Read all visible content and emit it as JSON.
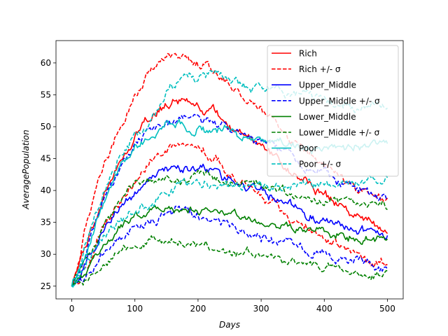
{
  "chart_data": {
    "type": "line",
    "xlabel": "Days",
    "ylabel": "AveragePopulation",
    "xlim": [
      -25,
      525
    ],
    "ylim": [
      23,
      63.5
    ],
    "xticks": [
      0,
      100,
      200,
      300,
      400,
      500
    ],
    "yticks": [
      25,
      30,
      35,
      40,
      45,
      50,
      55,
      60
    ],
    "grid": false,
    "legend_position": "top-right",
    "series": [
      {
        "name": "Rich",
        "color": "#ff0000",
        "dash": "solid",
        "noise": 0.7,
        "x": [
          0,
          25,
          50,
          75,
          100,
          125,
          150,
          175,
          200,
          225,
          250,
          275,
          300,
          325,
          350,
          375,
          400,
          425,
          450,
          475,
          500
        ],
        "y": [
          25,
          32,
          39,
          44.5,
          48.5,
          51.5,
          53.5,
          54.2,
          53.5,
          52.5,
          50.5,
          49,
          47,
          45,
          43,
          41,
          39,
          37.5,
          36,
          35,
          33.5
        ]
      },
      {
        "name": "Rich +/- σ",
        "color": "#ff0000",
        "dash": "dashed",
        "noise": 0.7,
        "x": [
          0,
          25,
          50,
          75,
          100,
          125,
          150,
          175,
          200,
          225,
          250,
          275,
          300,
          325,
          350,
          375,
          400,
          425,
          450,
          475,
          500
        ],
        "y": [
          25,
          36,
          44.5,
          50,
          54.5,
          58.5,
          60.5,
          61.5,
          60,
          58.5,
          56.5,
          54.5,
          52,
          50,
          48,
          46,
          44,
          42,
          40.5,
          39,
          38
        ]
      },
      {
        "name": "",
        "color": "#ff0000",
        "dash": "dashed",
        "noise": 0.7,
        "x": [
          0,
          25,
          50,
          75,
          100,
          125,
          150,
          175,
          200,
          225,
          250,
          275,
          300,
          325,
          350,
          375,
          400,
          425,
          450,
          475,
          500
        ],
        "y": [
          25,
          28.5,
          33.5,
          38,
          41.5,
          44.5,
          46.5,
          47.2,
          46.5,
          45.5,
          43.5,
          41.5,
          39.5,
          37.5,
          35.5,
          34,
          32.5,
          31,
          30,
          29,
          28.5
        ]
      },
      {
        "name": "Upper_Middle",
        "color": "#0000ff",
        "dash": "solid",
        "noise": 0.7,
        "x": [
          0,
          25,
          50,
          75,
          100,
          125,
          150,
          175,
          200,
          225,
          250,
          275,
          300,
          325,
          350,
          375,
          400,
          425,
          450,
          475,
          500
        ],
        "y": [
          25,
          29.5,
          33.5,
          37,
          39.5,
          41.5,
          43,
          43.8,
          43.5,
          42.5,
          41.5,
          40.5,
          39.5,
          38.5,
          37.5,
          36.5,
          35.5,
          35,
          34,
          33.5,
          33
        ]
      },
      {
        "name": "Upper_Middle +/- σ",
        "color": "#0000ff",
        "dash": "dashed",
        "noise": 0.7,
        "x": [
          0,
          25,
          50,
          75,
          100,
          125,
          150,
          175,
          200,
          225,
          250,
          275,
          300,
          325,
          350,
          375,
          400,
          425,
          450,
          475,
          500
        ],
        "y": [
          25,
          31.5,
          38,
          43.5,
          47,
          49.5,
          50.5,
          51.2,
          50.5,
          50.5,
          49.5,
          48.5,
          47.5,
          46.5,
          45,
          43.5,
          42.5,
          41.5,
          40.5,
          39.5,
          38.5
        ]
      },
      {
        "name": "",
        "color": "#0000ff",
        "dash": "dashed",
        "noise": 0.7,
        "x": [
          0,
          25,
          50,
          75,
          100,
          125,
          150,
          175,
          200,
          225,
          250,
          275,
          300,
          325,
          350,
          375,
          400,
          425,
          450,
          475,
          500
        ],
        "y": [
          25,
          27.5,
          30,
          32.5,
          34.5,
          35.5,
          36.3,
          37,
          36,
          35.5,
          34.5,
          33.5,
          32.5,
          31.8,
          31,
          30.5,
          29.8,
          29.2,
          28.7,
          28.2,
          27.8
        ]
      },
      {
        "name": "Lower_Middle",
        "color": "#008000",
        "dash": "solid",
        "noise": 0.6,
        "x": [
          0,
          25,
          50,
          75,
          100,
          125,
          150,
          175,
          200,
          225,
          250,
          275,
          300,
          325,
          350,
          375,
          400,
          425,
          450,
          475,
          500
        ],
        "y": [
          25,
          28,
          31,
          34,
          36,
          36.8,
          37,
          36.8,
          36.8,
          36.3,
          36,
          35.5,
          35,
          34.5,
          34,
          33.8,
          33.5,
          33.2,
          32.8,
          32.5,
          32.2
        ]
      },
      {
        "name": "Lower_Middle +/- σ",
        "color": "#008000",
        "dash": "dashed",
        "noise": 0.6,
        "x": [
          0,
          25,
          50,
          75,
          100,
          125,
          150,
          175,
          200,
          225,
          250,
          275,
          300,
          325,
          350,
          375,
          400,
          425,
          450,
          475,
          500
        ],
        "y": [
          25,
          30,
          34.5,
          38.5,
          41,
          41.5,
          41.8,
          42,
          42.5,
          42,
          41.5,
          41,
          40.5,
          40,
          39.5,
          39,
          38.5,
          38.3,
          38,
          37.8,
          37.5
        ]
      },
      {
        "name": "",
        "color": "#008000",
        "dash": "dashed",
        "noise": 0.6,
        "x": [
          0,
          25,
          50,
          75,
          100,
          125,
          150,
          175,
          200,
          225,
          250,
          275,
          300,
          325,
          350,
          375,
          400,
          425,
          450,
          475,
          500
        ],
        "y": [
          25,
          26.5,
          28,
          30,
          31.5,
          32.3,
          32,
          31.8,
          31.3,
          30.8,
          30.5,
          30.2,
          29.8,
          29.5,
          29,
          28.6,
          28.2,
          27.8,
          27.4,
          27.2,
          27
        ]
      },
      {
        "name": "Poor",
        "color": "#00bfbf",
        "dash": "solid",
        "noise": 0.7,
        "x": [
          0,
          25,
          50,
          75,
          100,
          125,
          150,
          175,
          200,
          225,
          250,
          275,
          300,
          325,
          350,
          375,
          400,
          425,
          450,
          475,
          500
        ],
        "y": [
          25,
          31,
          37.5,
          43,
          47,
          49,
          50.5,
          50.5,
          49.8,
          49.5,
          49,
          48.5,
          48,
          47.5,
          47.3,
          47,
          46.8,
          47,
          47,
          47.2,
          47.5
        ]
      },
      {
        "name": "Poor +/- σ",
        "color": "#00bfbf",
        "dash": "dashed",
        "noise": 0.7,
        "x": [
          0,
          25,
          50,
          75,
          100,
          125,
          150,
          175,
          200,
          225,
          250,
          275,
          300,
          325,
          350,
          375,
          400,
          425,
          450,
          475,
          500
        ],
        "y": [
          25,
          33,
          39.5,
          45,
          48.5,
          51,
          55,
          57.5,
          58,
          57.5,
          57,
          56.5,
          56,
          55.5,
          55,
          54.5,
          54.5,
          54,
          53.5,
          53.2,
          53
        ]
      },
      {
        "name": "",
        "color": "#00bfbf",
        "dash": "dashed",
        "noise": 0.7,
        "x": [
          0,
          25,
          50,
          75,
          100,
          125,
          150,
          175,
          200,
          225,
          250,
          275,
          300,
          325,
          350,
          375,
          400,
          425,
          450,
          475,
          500
        ],
        "y": [
          25,
          29.5,
          33,
          35,
          36.5,
          38,
          40,
          41,
          41.5,
          41,
          41,
          40.8,
          40.7,
          40.7,
          40.8,
          41,
          41,
          41.2,
          41.5,
          41.8,
          42
        ]
      }
    ]
  }
}
